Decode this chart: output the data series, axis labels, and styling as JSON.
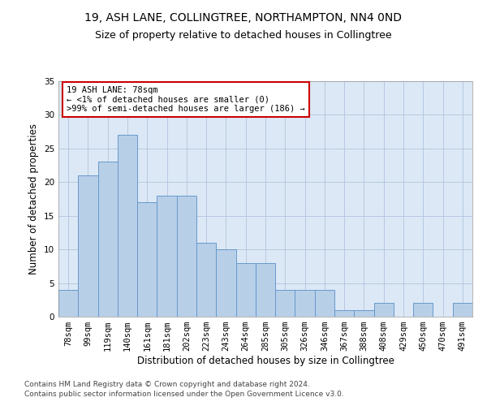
{
  "title1": "19, ASH LANE, COLLINGTREE, NORTHAMPTON, NN4 0ND",
  "title2": "Size of property relative to detached houses in Collingtree",
  "xlabel": "Distribution of detached houses by size in Collingtree",
  "ylabel": "Number of detached properties",
  "bar_labels": [
    "78sqm",
    "99sqm",
    "119sqm",
    "140sqm",
    "161sqm",
    "181sqm",
    "202sqm",
    "223sqm",
    "243sqm",
    "264sqm",
    "285sqm",
    "305sqm",
    "326sqm",
    "346sqm",
    "367sqm",
    "388sqm",
    "408sqm",
    "429sqm",
    "450sqm",
    "470sqm",
    "491sqm"
  ],
  "bar_values": [
    4,
    21,
    23,
    27,
    17,
    18,
    18,
    11,
    10,
    8,
    8,
    4,
    4,
    4,
    1,
    1,
    2,
    0,
    2,
    0,
    2
  ],
  "bar_color": "#b8cfe8",
  "bar_edge_color": "#6699cc",
  "annotation_text": "19 ASH LANE: 78sqm\n← <1% of detached houses are smaller (0)\n>99% of semi-detached houses are larger (186) →",
  "annotation_box_color": "#ffffff",
  "annotation_box_edge_color": "#cc0000",
  "footnote1": "Contains HM Land Registry data © Crown copyright and database right 2024.",
  "footnote2": "Contains public sector information licensed under the Open Government Licence v3.0.",
  "ylim": [
    0,
    35
  ],
  "yticks": [
    0,
    5,
    10,
    15,
    20,
    25,
    30,
    35
  ],
  "bg_color": "#ffffff",
  "plot_bg_color": "#dce8f5",
  "grid_color": "#b0c4de",
  "title1_fontsize": 10,
  "title2_fontsize": 9,
  "xlabel_fontsize": 8.5,
  "ylabel_fontsize": 8.5,
  "tick_fontsize": 7.5,
  "annotation_fontsize": 7.5,
  "footnote_fontsize": 6.5
}
